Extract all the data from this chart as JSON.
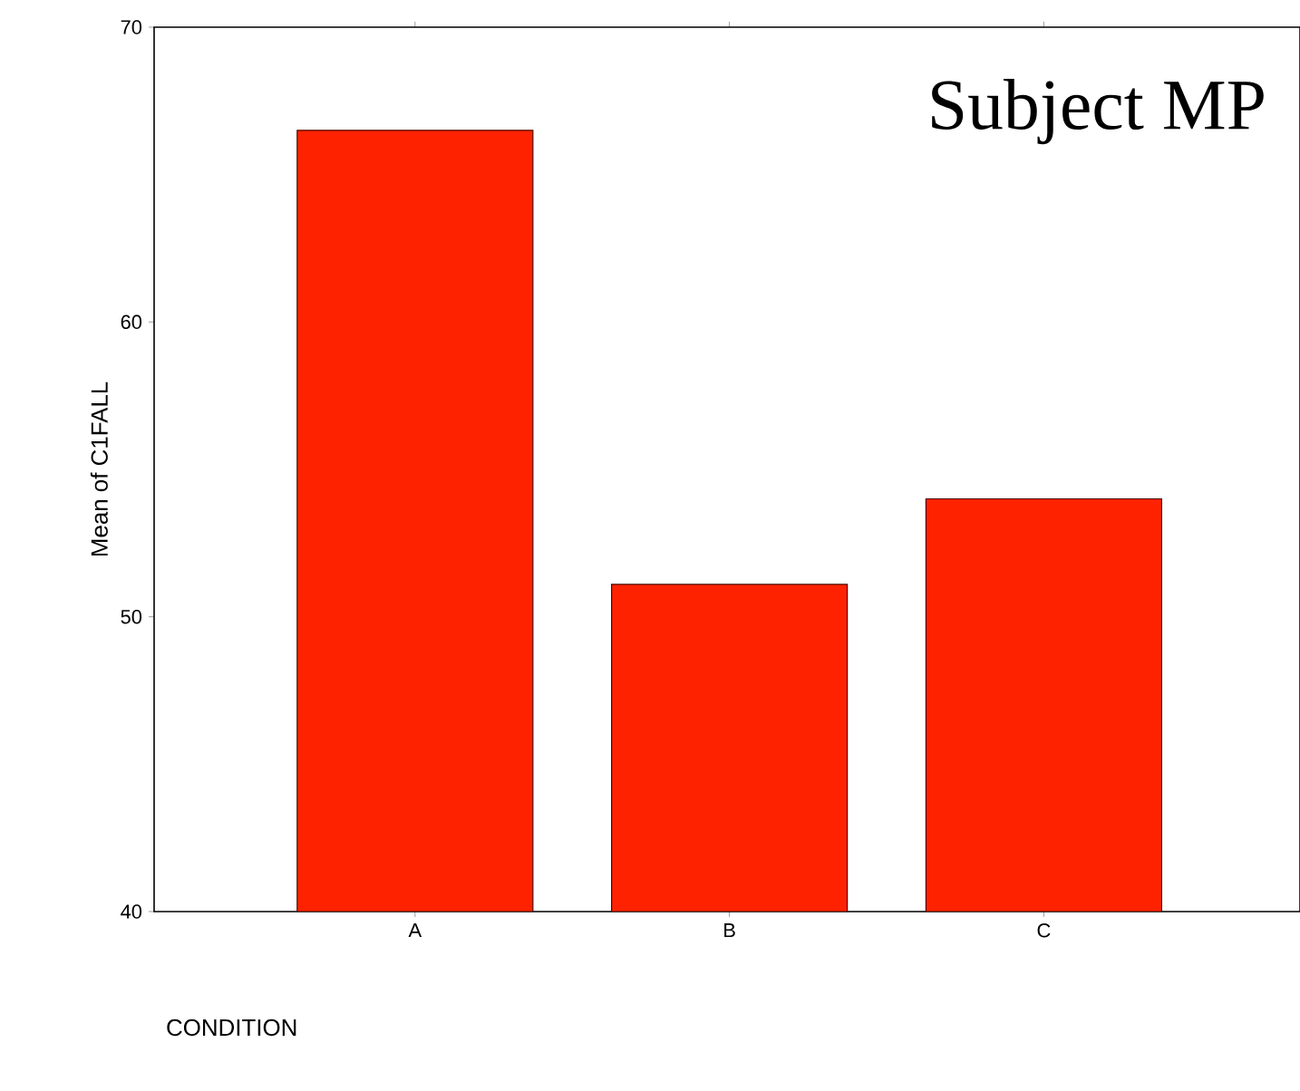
{
  "chart_data": {
    "type": "bar",
    "ylabel": "Mean of C1FALL",
    "annotations": [
      "Subject MP",
      "CONDITION"
    ],
    "categories": [
      "A",
      "B",
      "C"
    ],
    "values": [
      66.5,
      51.1,
      54.0
    ],
    "color": "#ff2200",
    "ylim": [
      40,
      70
    ],
    "yticks": [
      40,
      50,
      60,
      70
    ],
    "grid": false
  }
}
